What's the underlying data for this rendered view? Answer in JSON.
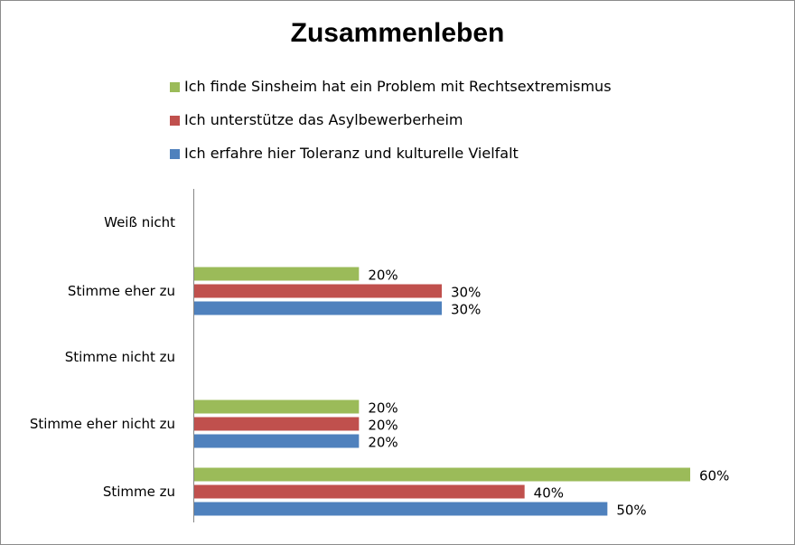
{
  "chart_data": {
    "type": "bar",
    "orientation": "horizontal",
    "title": "Zusammenleben",
    "categories": [
      "Weiß nicht",
      "Stimme eher zu",
      "Stimme nicht zu",
      "Stimme eher nicht zu",
      "Stimme zu"
    ],
    "series": [
      {
        "name": "Ich finde Sinsheim hat ein Problem mit Rechtsextremismus",
        "color": "#9bbb59",
        "values": [
          null,
          20,
          null,
          20,
          60
        ],
        "labels": [
          "",
          "20%",
          "",
          "20%",
          "60%"
        ]
      },
      {
        "name": "Ich unterstütze das Asylbewerberheim",
        "color": "#c0504d",
        "values": [
          null,
          30,
          null,
          20,
          40
        ],
        "labels": [
          "",
          "30%",
          "",
          "20%",
          "40%"
        ]
      },
      {
        "name": "Ich erfahre hier Toleranz und kulturelle Vielfalt",
        "color": "#4f81bd",
        "values": [
          null,
          30,
          null,
          20,
          50
        ],
        "labels": [
          "",
          "30%",
          "",
          "20%",
          "50%"
        ]
      }
    ],
    "xlim": [
      0,
      60
    ],
    "grid": false,
    "legend_position": "top"
  }
}
